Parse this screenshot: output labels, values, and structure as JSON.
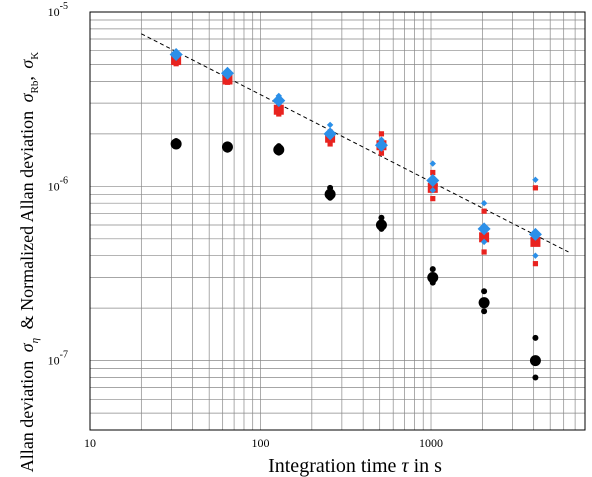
{
  "chart_data": {
    "type": "scatter",
    "xscale": "log",
    "yscale": "log",
    "xlim": [
      10,
      8000
    ],
    "ylim": [
      4e-08,
      1e-05
    ],
    "grid": true,
    "xlabel": {
      "main": "Integration time",
      "symbol": "τ",
      "unit": "in s"
    },
    "ylabel": {
      "part1": "Allan deviation",
      "sym1": "σ",
      "sub1": "η",
      "part2": "& Normalized Allan deviation",
      "sym2": "σ",
      "sub2": "Rb",
      "sep": ",",
      "sym3": "σ",
      "sub3": "K"
    },
    "xticks": [
      {
        "value": 10,
        "label": "10"
      },
      {
        "value": 100,
        "label": "100"
      },
      {
        "value": 1000,
        "label": "1000"
      }
    ],
    "yticks": [
      {
        "value": 1e-07,
        "mant": "10",
        "exp": "-7"
      },
      {
        "value": 1e-06,
        "mant": "10",
        "exp": "-6"
      },
      {
        "value": 1e-05,
        "mant": "10",
        "exp": "-5"
      }
    ],
    "colors": {
      "sigma_eta": "#000000",
      "sigma_Rb": "#e8231f",
      "sigma_K": "#2b8fe8",
      "fit": "#000000",
      "grid": "#888888"
    },
    "reference_line": {
      "style": "dashed",
      "x": [
        20,
        6400
      ],
      "y": [
        7.5e-06,
        4.2e-07
      ]
    },
    "series": [
      {
        "symbol": "circle",
        "color": "#000000",
        "main": [
          [
            32,
            1.75e-06
          ],
          [
            64,
            1.68e-06
          ],
          [
            128,
            1.62e-06
          ],
          [
            256,
            9e-07
          ],
          [
            512,
            6e-07
          ],
          [
            1024,
            3e-07
          ],
          [
            2048,
            2.15e-07
          ],
          [
            4096,
            1e-07
          ]
        ],
        "spread": [
          [
            32,
            1.82e-06
          ],
          [
            32,
            1.7e-06
          ],
          [
            64,
            1.74e-06
          ],
          [
            64,
            1.62e-06
          ],
          [
            128,
            1.7e-06
          ],
          [
            128,
            1.56e-06
          ],
          [
            256,
            9.8e-07
          ],
          [
            256,
            8.6e-07
          ],
          [
            512,
            6.6e-07
          ],
          [
            512,
            5.7e-07
          ],
          [
            1024,
            3.35e-07
          ],
          [
            1024,
            2.8e-07
          ],
          [
            2048,
            2.5e-07
          ],
          [
            2048,
            1.92e-07
          ],
          [
            4096,
            1.35e-07
          ],
          [
            4096,
            8e-08
          ]
        ]
      },
      {
        "symbol": "square",
        "color": "#e8231f",
        "main": [
          [
            32,
            5.3e-06
          ],
          [
            64,
            4.1e-06
          ],
          [
            128,
            2.75e-06
          ],
          [
            256,
            1.9e-06
          ],
          [
            512,
            1.72e-06
          ],
          [
            1024,
            9.8e-07
          ],
          [
            2048,
            5.1e-07
          ],
          [
            4096,
            4.8e-07
          ]
        ],
        "spread": [
          [
            32,
            5.6e-06
          ],
          [
            32,
            5.05e-06
          ],
          [
            64,
            4.35e-06
          ],
          [
            64,
            3.95e-06
          ],
          [
            128,
            2.95e-06
          ],
          [
            128,
            2.6e-06
          ],
          [
            256,
            2.05e-06
          ],
          [
            256,
            1.75e-06
          ],
          [
            512,
            2e-06
          ],
          [
            512,
            1.55e-06
          ],
          [
            1024,
            1.2e-06
          ],
          [
            1024,
            8.5e-07
          ],
          [
            2048,
            7.2e-07
          ],
          [
            2048,
            4.2e-07
          ],
          [
            4096,
            9.8e-07
          ],
          [
            4096,
            3.6e-07
          ]
        ]
      },
      {
        "symbol": "diamond",
        "color": "#2b8fe8",
        "main": [
          [
            32,
            5.7e-06
          ],
          [
            64,
            4.45e-06
          ],
          [
            128,
            3.1e-06
          ],
          [
            256,
            2e-06
          ],
          [
            512,
            1.72e-06
          ],
          [
            1024,
            1.08e-06
          ],
          [
            2048,
            5.7e-07
          ],
          [
            4096,
            5.3e-07
          ]
        ],
        "spread": [
          [
            32,
            5.9e-06
          ],
          [
            64,
            4.6e-06
          ],
          [
            128,
            3.3e-06
          ],
          [
            256,
            2.25e-06
          ],
          [
            512,
            1.85e-06
          ],
          [
            1024,
            1.35e-06
          ],
          [
            1024,
            9.5e-07
          ],
          [
            2048,
            8e-07
          ],
          [
            2048,
            4.8e-07
          ],
          [
            4096,
            1.09e-06
          ],
          [
            4096,
            4e-07
          ]
        ]
      }
    ]
  }
}
